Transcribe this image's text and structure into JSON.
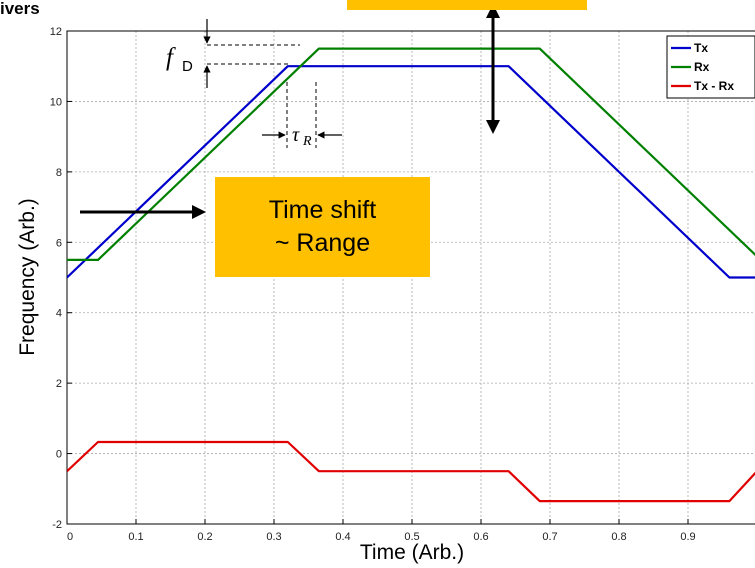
{
  "header_text": "ivers",
  "annotations": {
    "fd_symbol": "f",
    "fd_subscript": "D",
    "tau_symbol": "τ",
    "tau_subscript": "R",
    "callout_line1": "Time shift",
    "callout_line2": "~ Range"
  },
  "chart_data": {
    "type": "line",
    "xlabel": "Time (Arb.)",
    "ylabel": "Frequency (Arb.)",
    "xlim": [
      0,
      1
    ],
    "ylim": [
      -2,
      12
    ],
    "xticks": [
      0,
      0.1,
      0.2,
      0.3,
      0.4,
      0.5,
      0.6,
      0.7,
      0.8,
      0.9
    ],
    "yticks": [
      -2,
      0,
      2,
      4,
      6,
      8,
      10,
      12
    ],
    "grid": true,
    "legend_position": "top-right",
    "series": [
      {
        "name": "Tx",
        "color": "#0000cc",
        "x": [
          0,
          0.32,
          0.64,
          0.96,
          1.0
        ],
        "y": [
          5.0,
          11.0,
          11.0,
          5.0,
          5.0
        ]
      },
      {
        "name": "Rx",
        "color": "#008000",
        "x": [
          0,
          0.045,
          0.365,
          0.685,
          1.0
        ],
        "y": [
          5.5,
          5.5,
          11.5,
          11.5,
          5.6
        ]
      },
      {
        "name": "Tx - Rx",
        "color": "#e00000",
        "x": [
          0,
          0.045,
          0.32,
          0.365,
          0.64,
          0.685,
          0.96,
          1.0
        ],
        "y": [
          -0.5,
          0.33,
          0.33,
          -0.5,
          -0.5,
          -1.35,
          -1.35,
          -0.5
        ]
      }
    ]
  }
}
